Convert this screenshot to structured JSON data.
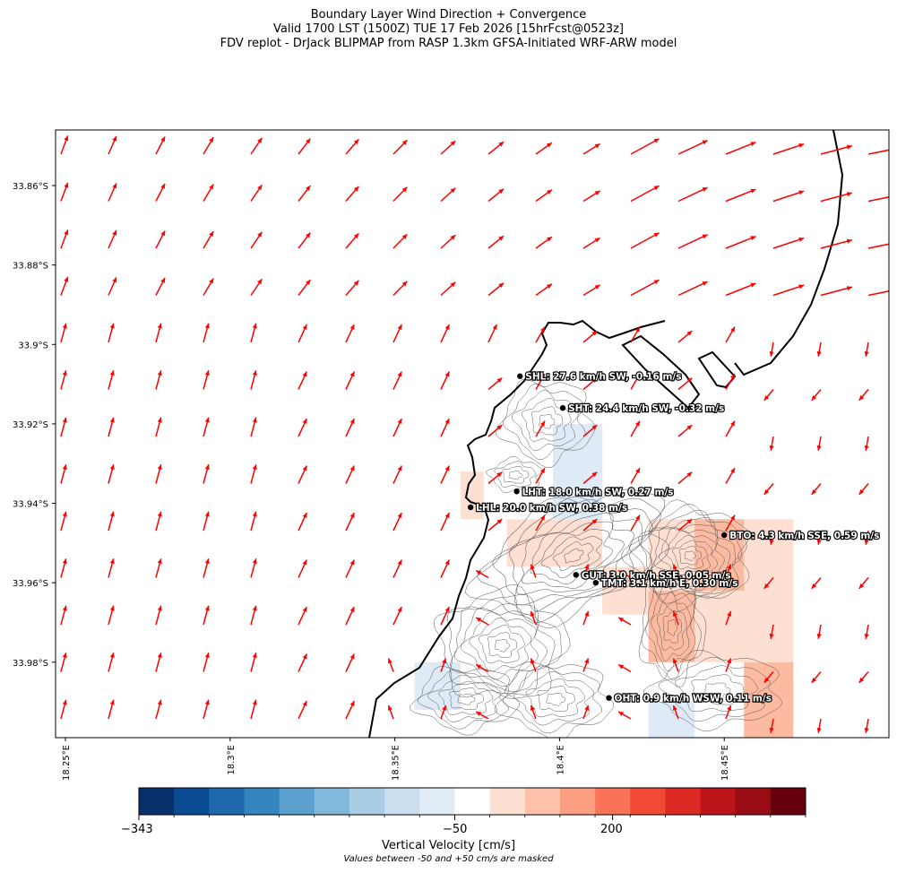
{
  "titles": {
    "line1": "Boundary Layer Wind Direction + Convergence",
    "line2": "Valid 1700 LST (1500Z) TUE 17 Feb 2026 [15hrFcst@0523z]",
    "line3": "FDV replot - DrJack BLIPMAP from RASP 1.3km GFSA-Initiated WRF-ARW model"
  },
  "map": {
    "lat_ticks": [
      "33.86°S",
      "33.88°S",
      "33.9°S",
      "33.92°S",
      "33.94°S",
      "33.96°S",
      "33.98°S"
    ],
    "lon_ticks": [
      "18.25°E",
      "18.3°E",
      "18.35°E",
      "18.4°E",
      "18.45°E"
    ],
    "lat_range": [
      -33.999,
      -33.846
    ],
    "lon_range": [
      18.247,
      18.5
    ],
    "wind_arrow_color": "#ff0000",
    "coast_color": "#000000",
    "contour_color": "#555555"
  },
  "stations": [
    {
      "id": "SHL",
      "label": "SHL: 27.6 km/h SW, -0.16 m/s",
      "lon": 18.388,
      "lat": -33.908
    },
    {
      "id": "SHT",
      "label": "SHT: 24.4 km/h SW, -0.32 m/s",
      "lon": 18.401,
      "lat": -33.916
    },
    {
      "id": "LHT",
      "label": "LHT: 18.0 km/h SW, 0.27 m/s",
      "lon": 18.387,
      "lat": -33.937
    },
    {
      "id": "LHL",
      "label": "LHL: 20.0 km/h SW, 0.38 m/s",
      "lon": 18.373,
      "lat": -33.941
    },
    {
      "id": "BTO",
      "label": "BTO: 4.3 km/h SSE, 0.59 m/s",
      "lon": 18.45,
      "lat": -33.948
    },
    {
      "id": "GUT",
      "label": "GUT: 3.0 km/h SSE, 0.05 m/s",
      "lon": 18.405,
      "lat": -33.958
    },
    {
      "id": "TMT",
      "label": "TMT: 3.1 km/h E, 0.30 m/s",
      "lon": 18.411,
      "lat": -33.96
    },
    {
      "id": "OHT",
      "label": "OHT: 0.9 km/h WSW, 0.11 m/s",
      "lon": 18.415,
      "lat": -33.989
    }
  ],
  "colorbar": {
    "title": "Vertical Velocity [cm/s]",
    "note": "Values between -50 and +50 cm/s are masked",
    "tick_labels": [
      "−343",
      "−50",
      "200"
    ],
    "tick_values": [
      -343,
      -50,
      200
    ],
    "colors": [
      "#08306b",
      "#0a4b94",
      "#1f68ae",
      "#3585bf",
      "#5a9fcd",
      "#80b9dc",
      "#a9cde4",
      "#cbdff0",
      "#e2ecf7",
      "#ffffff",
      "#fee0d3",
      "#fdc0a8",
      "#fc9e80",
      "#f9735a",
      "#f14a37",
      "#dc2924",
      "#bb1419",
      "#9a0c14",
      "#67000d"
    ]
  },
  "shading": [
    {
      "lon0": 18.37,
      "lon1": 18.377,
      "lat0": -33.932,
      "lat1": -33.944,
      "value": 80
    },
    {
      "lon0": 18.384,
      "lon1": 18.398,
      "lat0": -33.944,
      "lat1": -33.956,
      "value": 90
    },
    {
      "lon0": 18.398,
      "lon1": 18.413,
      "lat0": -33.944,
      "lat1": -33.956,
      "value": 60
    },
    {
      "lon0": 18.413,
      "lon1": 18.428,
      "lat0": -33.956,
      "lat1": -33.968,
      "value": 60
    },
    {
      "lon0": 18.427,
      "lon1": 18.471,
      "lat0": -33.944,
      "lat1": -33.98,
      "value": 80
    },
    {
      "lon0": 18.441,
      "lon1": 18.456,
      "lat0": -33.944,
      "lat1": -33.962,
      "value": 120
    },
    {
      "lon0": 18.427,
      "lon1": 18.441,
      "lat0": -33.962,
      "lat1": -33.98,
      "value": 120
    },
    {
      "lon0": 18.456,
      "lon1": 18.471,
      "lat0": -33.98,
      "lat1": -33.999,
      "value": 140
    },
    {
      "lon0": 18.398,
      "lon1": 18.413,
      "lat0": -33.92,
      "lat1": -33.944,
      "value": -70
    },
    {
      "lon0": 18.356,
      "lon1": 18.37,
      "lat0": -33.98,
      "lat1": -33.992,
      "value": -70
    },
    {
      "lon0": 18.427,
      "lon1": 18.441,
      "lat0": -33.99,
      "lat1": -33.999,
      "value": -70
    }
  ]
}
